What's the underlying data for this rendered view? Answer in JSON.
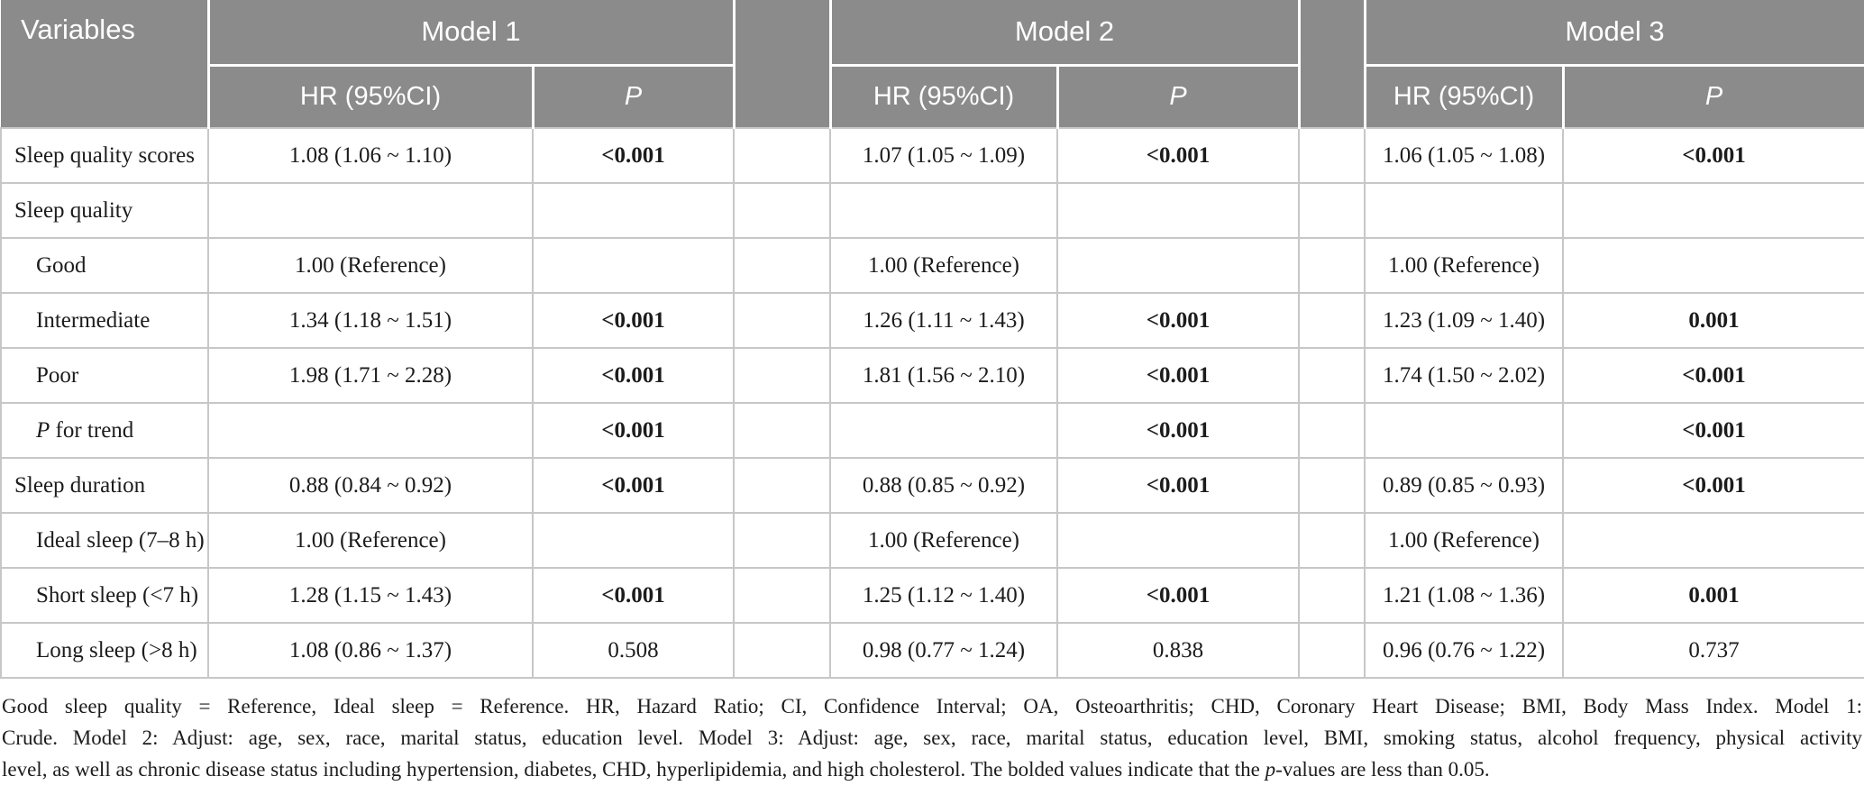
{
  "colors": {
    "header_bg": "#8b8b8b",
    "header_text": "#ffffff",
    "grid_line": "#c7c7c7",
    "body_text": "#1c1c1c",
    "background": "#ffffff"
  },
  "table": {
    "header": {
      "variables_label": "Variables",
      "models": [
        "Model 1",
        "Model 2",
        "Model 3"
      ],
      "hr_label": "HR (95%CI)",
      "p_label": "P"
    },
    "rows": [
      {
        "label": "Sleep quality scores",
        "indent": false,
        "m1": {
          "hr": "1.08 (1.06 ~ 1.10)",
          "p": "<0.001",
          "p_bold": true
        },
        "m2": {
          "hr": "1.07 (1.05 ~ 1.09)",
          "p": "<0.001",
          "p_bold": true
        },
        "m3": {
          "hr": "1.06 (1.05 ~ 1.08)",
          "p": "<0.001",
          "p_bold": true
        }
      },
      {
        "label": "Sleep quality",
        "indent": false,
        "m1": {
          "hr": "",
          "p": "",
          "p_bold": false
        },
        "m2": {
          "hr": "",
          "p": "",
          "p_bold": false
        },
        "m3": {
          "hr": "",
          "p": "",
          "p_bold": false
        }
      },
      {
        "label": "Good",
        "indent": true,
        "m1": {
          "hr": "1.00 (Reference)",
          "p": "",
          "p_bold": false
        },
        "m2": {
          "hr": "1.00 (Reference)",
          "p": "",
          "p_bold": false
        },
        "m3": {
          "hr": "1.00 (Reference)",
          "p": "",
          "p_bold": false
        }
      },
      {
        "label": "Intermediate",
        "indent": true,
        "m1": {
          "hr": "1.34 (1.18 ~ 1.51)",
          "p": "<0.001",
          "p_bold": true
        },
        "m2": {
          "hr": "1.26 (1.11 ~ 1.43)",
          "p": "<0.001",
          "p_bold": true
        },
        "m3": {
          "hr": "1.23 (1.09 ~ 1.40)",
          "p": "0.001",
          "p_bold": true
        }
      },
      {
        "label": "Poor",
        "indent": true,
        "m1": {
          "hr": "1.98 (1.71 ~ 2.28)",
          "p": "<0.001",
          "p_bold": true
        },
        "m2": {
          "hr": "1.81 (1.56 ~ 2.10)",
          "p": "<0.001",
          "p_bold": true
        },
        "m3": {
          "hr": "1.74 (1.50 ~ 2.02)",
          "p": "<0.001",
          "p_bold": true
        }
      },
      {
        "label_italic_prefix": "P",
        "label": " for trend",
        "indent": true,
        "m1": {
          "hr": "",
          "p": "<0.001",
          "p_bold": true
        },
        "m2": {
          "hr": "",
          "p": "<0.001",
          "p_bold": true
        },
        "m3": {
          "hr": "",
          "p": "<0.001",
          "p_bold": true
        }
      },
      {
        "label": "Sleep duration",
        "indent": false,
        "m1": {
          "hr": "0.88 (0.84 ~ 0.92)",
          "p": "<0.001",
          "p_bold": true
        },
        "m2": {
          "hr": "0.88 (0.85 ~ 0.92)",
          "p": "<0.001",
          "p_bold": true
        },
        "m3": {
          "hr": "0.89 (0.85 ~ 0.93)",
          "p": "<0.001",
          "p_bold": true
        }
      },
      {
        "label": "Ideal sleep (7–8 h)",
        "indent": true,
        "m1": {
          "hr": "1.00 (Reference)",
          "p": "",
          "p_bold": false
        },
        "m2": {
          "hr": "1.00 (Reference)",
          "p": "",
          "p_bold": false
        },
        "m3": {
          "hr": "1.00 (Reference)",
          "p": "",
          "p_bold": false
        }
      },
      {
        "label": "Short sleep (<7 h)",
        "indent": true,
        "m1": {
          "hr": "1.28 (1.15 ~ 1.43)",
          "p": "<0.001",
          "p_bold": true
        },
        "m2": {
          "hr": "1.25 (1.12 ~ 1.40)",
          "p": "<0.001",
          "p_bold": true
        },
        "m3": {
          "hr": "1.21 (1.08 ~ 1.36)",
          "p": "0.001",
          "p_bold": true
        }
      },
      {
        "label": "Long sleep (>8 h)",
        "indent": true,
        "m1": {
          "hr": "1.08 (0.86 ~ 1.37)",
          "p": "0.508",
          "p_bold": false
        },
        "m2": {
          "hr": "0.98 (0.77 ~ 1.24)",
          "p": "0.838",
          "p_bold": false
        },
        "m3": {
          "hr": "0.96 (0.76 ~ 1.22)",
          "p": "0.737",
          "p_bold": false
        }
      }
    ]
  },
  "footnote": {
    "line1": "Good sleep quality = Reference, Ideal sleep = Reference. HR, Hazard Ratio; CI, Confidence Interval; OA, Osteoarthritis; CHD, Coronary Heart Disease; BMI, Body Mass Index. Model 1:",
    "line2": "Crude. Model 2: Adjust: age, sex, race, marital status, education level. Model 3: Adjust: age, sex, race, marital status, education level, BMI, smoking status, alcohol frequency, physical activity",
    "line3_pre": "level, as well as chronic disease status including hypertension, diabetes, CHD, hyperlipidemia, and high cholesterol. The bolded values indicate that the ",
    "line3_italic": "p",
    "line3_post": "-values are less than 0.05."
  }
}
